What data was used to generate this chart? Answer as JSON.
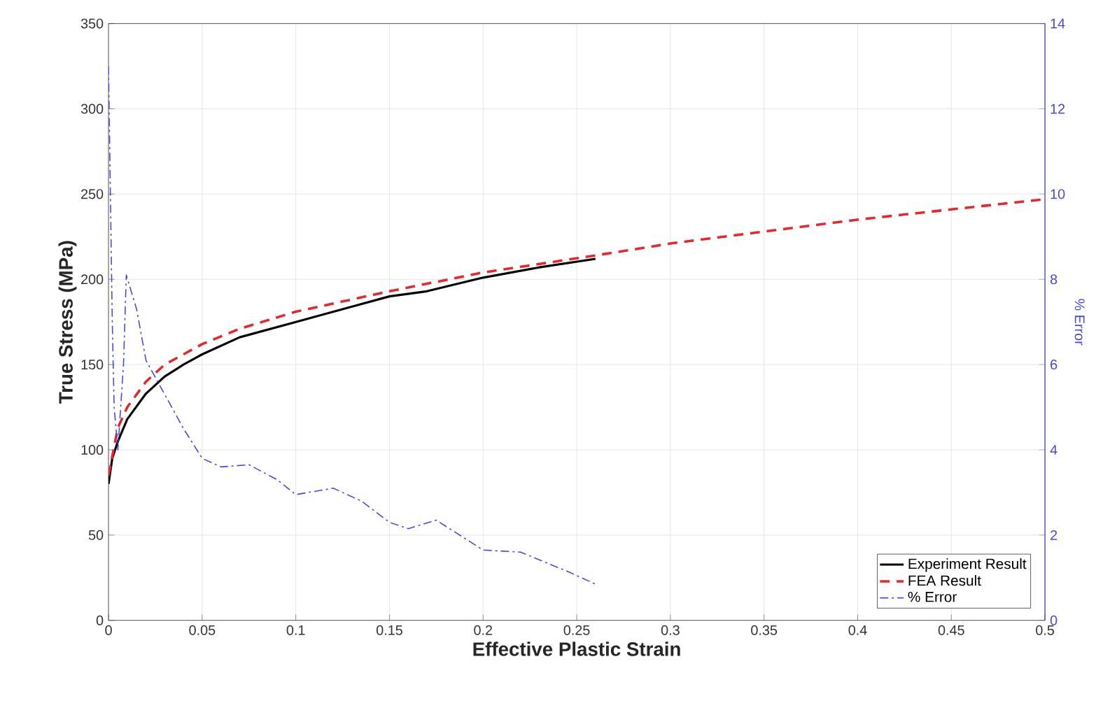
{
  "chart_data": {
    "type": "line",
    "xlabel": "Effective Plastic Strain",
    "ylabel": "True Stress (MPa)",
    "y2label": "% Error",
    "xlim": [
      0,
      0.5
    ],
    "xticks": [
      0,
      0.05,
      0.1,
      0.15,
      0.2,
      0.25,
      0.3,
      0.35,
      0.4,
      0.45,
      0.5
    ],
    "ylim": [
      0,
      350
    ],
    "yticks": [
      0,
      50,
      100,
      150,
      200,
      250,
      300,
      350
    ],
    "y2lim": [
      0,
      14
    ],
    "y2ticks": [
      0,
      2,
      4,
      6,
      8,
      10,
      12,
      14
    ],
    "grid": true,
    "legend": "bottom right",
    "series": [
      {
        "name": "Experiment Result",
        "color": "#000000",
        "line_style": "solid",
        "x": [
          0,
          0.002,
          0.005,
          0.01,
          0.02,
          0.03,
          0.04,
          0.05,
          0.07,
          0.1,
          0.13,
          0.15,
          0.17,
          0.2,
          0.23,
          0.26
        ],
        "values": [
          80,
          95,
          105,
          118,
          133,
          143,
          150,
          156,
          166,
          175,
          184,
          190,
          193,
          201,
          207,
          212
        ]
      },
      {
        "name": "FEA Result",
        "color": "#e8262b",
        "line_style": "dashed",
        "x": [
          0,
          0.005,
          0.01,
          0.02,
          0.03,
          0.05,
          0.07,
          0.1,
          0.15,
          0.2,
          0.26,
          0.3,
          0.35,
          0.4,
          0.45,
          0.5
        ],
        "values": [
          85,
          113,
          125,
          140,
          150,
          162,
          171,
          181,
          193,
          204,
          214,
          221,
          228,
          235,
          241,
          247
        ]
      },
      {
        "name": "% Error",
        "color": "#4848e0",
        "line_style": "dashdot",
        "axis": "y2",
        "x": [
          0,
          0.001,
          0.002,
          0.003,
          0.005,
          0.008,
          0.0095,
          0.015,
          0.02,
          0.03,
          0.04,
          0.05,
          0.06,
          0.075,
          0.09,
          0.1,
          0.12,
          0.135,
          0.15,
          0.16,
          0.175,
          0.2,
          0.22,
          0.245,
          0.26
        ],
        "values": [
          13,
          10,
          7,
          5,
          4,
          6,
          8.1,
          7.3,
          6.1,
          5.3,
          4.5,
          3.8,
          3.6,
          3.65,
          3.3,
          2.95,
          3.1,
          2.8,
          2.3,
          2.15,
          2.35,
          1.65,
          1.6,
          1.15,
          0.85
        ]
      }
    ]
  }
}
